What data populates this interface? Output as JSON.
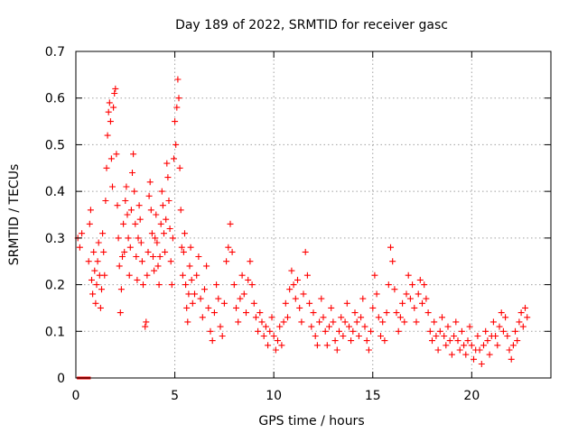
{
  "chart_data": {
    "type": "scatter",
    "title": "Day 189 of 2022, SRMTID for receiver gasc",
    "xlabel": "GPS time / hours",
    "ylabel": "SRMTID / TECUs",
    "xlim": [
      0,
      24
    ],
    "ylim": [
      0,
      0.7
    ],
    "x_ticks": [
      0,
      5,
      10,
      15,
      20
    ],
    "x_tick_labels": [
      "0",
      "5",
      "10",
      "15",
      "20"
    ],
    "y_ticks": [
      0,
      0.1,
      0.2,
      0.3,
      0.4,
      0.5,
      0.6,
      0.7
    ],
    "y_tick_labels": [
      "0",
      "0.1",
      "0.2",
      "0.3",
      "0.4",
      "0.5",
      "0.6",
      "0.7"
    ],
    "grid": true,
    "marker": "+",
    "color": "#ff0000",
    "zero_segment": {
      "x_start": 0.05,
      "x_end": 0.75,
      "y": 0
    },
    "series": [
      {
        "name": "SRMTID",
        "points": [
          [
            0.1,
            0.3
          ],
          [
            0.2,
            0.28
          ],
          [
            0.3,
            0.31
          ],
          [
            0.65,
            0.25
          ],
          [
            0.7,
            0.33
          ],
          [
            0.75,
            0.36
          ],
          [
            0.8,
            0.21
          ],
          [
            0.85,
            0.18
          ],
          [
            0.9,
            0.27
          ],
          [
            0.95,
            0.23
          ],
          [
            1.0,
            0.16
          ],
          [
            1.05,
            0.2
          ],
          [
            1.1,
            0.25
          ],
          [
            1.15,
            0.29
          ],
          [
            1.2,
            0.22
          ],
          [
            1.25,
            0.15
          ],
          [
            1.3,
            0.19
          ],
          [
            1.35,
            0.31
          ],
          [
            1.4,
            0.27
          ],
          [
            1.45,
            0.22
          ],
          [
            1.5,
            0.38
          ],
          [
            1.55,
            0.45
          ],
          [
            1.6,
            0.52
          ],
          [
            1.65,
            0.57
          ],
          [
            1.7,
            0.59
          ],
          [
            1.75,
            0.55
          ],
          [
            1.8,
            0.47
          ],
          [
            1.85,
            0.41
          ],
          [
            1.9,
            0.58
          ],
          [
            1.95,
            0.61
          ],
          [
            2.0,
            0.62
          ],
          [
            2.05,
            0.48
          ],
          [
            2.1,
            0.37
          ],
          [
            2.15,
            0.3
          ],
          [
            2.2,
            0.24
          ],
          [
            2.25,
            0.14
          ],
          [
            2.3,
            0.19
          ],
          [
            2.35,
            0.26
          ],
          [
            2.4,
            0.33
          ],
          [
            2.45,
            0.27
          ],
          [
            2.5,
            0.38
          ],
          [
            2.55,
            0.41
          ],
          [
            2.6,
            0.35
          ],
          [
            2.65,
            0.3
          ],
          [
            2.7,
            0.22
          ],
          [
            2.75,
            0.28
          ],
          [
            2.8,
            0.36
          ],
          [
            2.85,
            0.44
          ],
          [
            2.9,
            0.48
          ],
          [
            2.95,
            0.4
          ],
          [
            3.0,
            0.33
          ],
          [
            3.05,
            0.26
          ],
          [
            3.1,
            0.21
          ],
          [
            3.15,
            0.3
          ],
          [
            3.2,
            0.37
          ],
          [
            3.25,
            0.34
          ],
          [
            3.3,
            0.29
          ],
          [
            3.35,
            0.25
          ],
          [
            3.4,
            0.2
          ],
          [
            3.5,
            0.11
          ],
          [
            3.55,
            0.12
          ],
          [
            3.6,
            0.22
          ],
          [
            3.65,
            0.27
          ],
          [
            3.7,
            0.39
          ],
          [
            3.75,
            0.42
          ],
          [
            3.8,
            0.36
          ],
          [
            3.85,
            0.31
          ],
          [
            3.9,
            0.26
          ],
          [
            3.95,
            0.23
          ],
          [
            4.0,
            0.3
          ],
          [
            4.05,
            0.35
          ],
          [
            4.1,
            0.29
          ],
          [
            4.15,
            0.24
          ],
          [
            4.2,
            0.2
          ],
          [
            4.25,
            0.26
          ],
          [
            4.3,
            0.33
          ],
          [
            4.35,
            0.4
          ],
          [
            4.4,
            0.37
          ],
          [
            4.45,
            0.31
          ],
          [
            4.5,
            0.27
          ],
          [
            4.55,
            0.34
          ],
          [
            4.6,
            0.46
          ],
          [
            4.65,
            0.43
          ],
          [
            4.7,
            0.38
          ],
          [
            4.75,
            0.32
          ],
          [
            4.8,
            0.25
          ],
          [
            4.85,
            0.2
          ],
          [
            4.9,
            0.3
          ],
          [
            4.95,
            0.47
          ],
          [
            5.0,
            0.55
          ],
          [
            5.05,
            0.5
          ],
          [
            5.1,
            0.58
          ],
          [
            5.15,
            0.64
          ],
          [
            5.2,
            0.6
          ],
          [
            5.25,
            0.45
          ],
          [
            5.3,
            0.36
          ],
          [
            5.35,
            0.28
          ],
          [
            5.4,
            0.22
          ],
          [
            5.45,
            0.27
          ],
          [
            5.5,
            0.31
          ],
          [
            5.55,
            0.2
          ],
          [
            5.6,
            0.15
          ],
          [
            5.65,
            0.12
          ],
          [
            5.7,
            0.18
          ],
          [
            5.75,
            0.24
          ],
          [
            5.8,
            0.28
          ],
          [
            5.85,
            0.21
          ],
          [
            5.9,
            0.16
          ],
          [
            6.0,
            0.18
          ],
          [
            6.1,
            0.22
          ],
          [
            6.2,
            0.26
          ],
          [
            6.3,
            0.17
          ],
          [
            6.4,
            0.13
          ],
          [
            6.5,
            0.19
          ],
          [
            6.6,
            0.24
          ],
          [
            6.7,
            0.15
          ],
          [
            6.8,
            0.1
          ],
          [
            6.9,
            0.08
          ],
          [
            7.0,
            0.14
          ],
          [
            7.1,
            0.2
          ],
          [
            7.2,
            0.17
          ],
          [
            7.3,
            0.11
          ],
          [
            7.4,
            0.09
          ],
          [
            7.5,
            0.16
          ],
          [
            7.6,
            0.25
          ],
          [
            7.7,
            0.28
          ],
          [
            7.8,
            0.33
          ],
          [
            7.9,
            0.27
          ],
          [
            8.0,
            0.2
          ],
          [
            8.1,
            0.15
          ],
          [
            8.2,
            0.12
          ],
          [
            8.3,
            0.17
          ],
          [
            8.4,
            0.22
          ],
          [
            8.5,
            0.18
          ],
          [
            8.6,
            0.14
          ],
          [
            8.7,
            0.21
          ],
          [
            8.8,
            0.25
          ],
          [
            8.9,
            0.2
          ],
          [
            9.0,
            0.16
          ],
          [
            9.1,
            0.13
          ],
          [
            9.2,
            0.1
          ],
          [
            9.3,
            0.14
          ],
          [
            9.4,
            0.12
          ],
          [
            9.5,
            0.09
          ],
          [
            9.6,
            0.11
          ],
          [
            9.7,
            0.07
          ],
          [
            9.8,
            0.1
          ],
          [
            9.9,
            0.13
          ],
          [
            10.0,
            0.09
          ],
          [
            10.1,
            0.06
          ],
          [
            10.2,
            0.08
          ],
          [
            10.3,
            0.11
          ],
          [
            10.4,
            0.07
          ],
          [
            10.5,
            0.12
          ],
          [
            10.6,
            0.16
          ],
          [
            10.7,
            0.13
          ],
          [
            10.8,
            0.19
          ],
          [
            10.9,
            0.23
          ],
          [
            11.0,
            0.2
          ],
          [
            11.1,
            0.17
          ],
          [
            11.2,
            0.21
          ],
          [
            11.3,
            0.15
          ],
          [
            11.4,
            0.12
          ],
          [
            11.5,
            0.18
          ],
          [
            11.6,
            0.27
          ],
          [
            11.7,
            0.22
          ],
          [
            11.8,
            0.16
          ],
          [
            11.9,
            0.11
          ],
          [
            12.0,
            0.14
          ],
          [
            12.1,
            0.09
          ],
          [
            12.2,
            0.07
          ],
          [
            12.3,
            0.12
          ],
          [
            12.4,
            0.17
          ],
          [
            12.5,
            0.13
          ],
          [
            12.6,
            0.1
          ],
          [
            12.7,
            0.07
          ],
          [
            12.8,
            0.11
          ],
          [
            12.9,
            0.15
          ],
          [
            13.0,
            0.12
          ],
          [
            13.1,
            0.08
          ],
          [
            13.2,
            0.06
          ],
          [
            13.3,
            0.1
          ],
          [
            13.4,
            0.13
          ],
          [
            13.5,
            0.09
          ],
          [
            13.6,
            0.12
          ],
          [
            13.7,
            0.16
          ],
          [
            13.8,
            0.11
          ],
          [
            13.9,
            0.08
          ],
          [
            14.0,
            0.1
          ],
          [
            14.1,
            0.14
          ],
          [
            14.2,
            0.12
          ],
          [
            14.3,
            0.09
          ],
          [
            14.4,
            0.13
          ],
          [
            14.5,
            0.17
          ],
          [
            14.6,
            0.11
          ],
          [
            14.7,
            0.08
          ],
          [
            14.8,
            0.06
          ],
          [
            14.9,
            0.1
          ],
          [
            15.0,
            0.15
          ],
          [
            15.1,
            0.22
          ],
          [
            15.2,
            0.18
          ],
          [
            15.3,
            0.13
          ],
          [
            15.4,
            0.09
          ],
          [
            15.5,
            0.12
          ],
          [
            15.6,
            0.08
          ],
          [
            15.7,
            0.14
          ],
          [
            15.8,
            0.2
          ],
          [
            15.9,
            0.28
          ],
          [
            16.0,
            0.25
          ],
          [
            16.1,
            0.19
          ],
          [
            16.2,
            0.14
          ],
          [
            16.3,
            0.1
          ],
          [
            16.4,
            0.13
          ],
          [
            16.5,
            0.16
          ],
          [
            16.6,
            0.12
          ],
          [
            16.7,
            0.18
          ],
          [
            16.8,
            0.22
          ],
          [
            16.9,
            0.17
          ],
          [
            17.0,
            0.2
          ],
          [
            17.1,
            0.15
          ],
          [
            17.2,
            0.12
          ],
          [
            17.3,
            0.18
          ],
          [
            17.4,
            0.21
          ],
          [
            17.5,
            0.16
          ],
          [
            17.6,
            0.2
          ],
          [
            17.7,
            0.17
          ],
          [
            17.8,
            0.14
          ],
          [
            17.9,
            0.1
          ],
          [
            18.0,
            0.08
          ],
          [
            18.1,
            0.12
          ],
          [
            18.2,
            0.09
          ],
          [
            18.3,
            0.06
          ],
          [
            18.4,
            0.1
          ],
          [
            18.5,
            0.13
          ],
          [
            18.6,
            0.09
          ],
          [
            18.7,
            0.07
          ],
          [
            18.8,
            0.11
          ],
          [
            18.9,
            0.08
          ],
          [
            19.0,
            0.05
          ],
          [
            19.1,
            0.09
          ],
          [
            19.2,
            0.12
          ],
          [
            19.3,
            0.08
          ],
          [
            19.4,
            0.06
          ],
          [
            19.5,
            0.1
          ],
          [
            19.6,
            0.07
          ],
          [
            19.7,
            0.05
          ],
          [
            19.8,
            0.08
          ],
          [
            19.9,
            0.11
          ],
          [
            20.0,
            0.07
          ],
          [
            20.1,
            0.04
          ],
          [
            20.2,
            0.06
          ],
          [
            20.3,
            0.09
          ],
          [
            20.4,
            0.06
          ],
          [
            20.5,
            0.03
          ],
          [
            20.6,
            0.07
          ],
          [
            20.7,
            0.1
          ],
          [
            20.8,
            0.08
          ],
          [
            20.9,
            0.05
          ],
          [
            21.0,
            0.09
          ],
          [
            21.1,
            0.12
          ],
          [
            21.2,
            0.09
          ],
          [
            21.3,
            0.07
          ],
          [
            21.4,
            0.11
          ],
          [
            21.5,
            0.14
          ],
          [
            21.6,
            0.1
          ],
          [
            21.7,
            0.13
          ],
          [
            21.8,
            0.09
          ],
          [
            21.9,
            0.06
          ],
          [
            22.0,
            0.04
          ],
          [
            22.1,
            0.07
          ],
          [
            22.2,
            0.1
          ],
          [
            22.3,
            0.08
          ],
          [
            22.4,
            0.12
          ],
          [
            22.5,
            0.14
          ],
          [
            22.6,
            0.11
          ],
          [
            22.7,
            0.15
          ],
          [
            22.8,
            0.13
          ]
        ]
      }
    ]
  }
}
